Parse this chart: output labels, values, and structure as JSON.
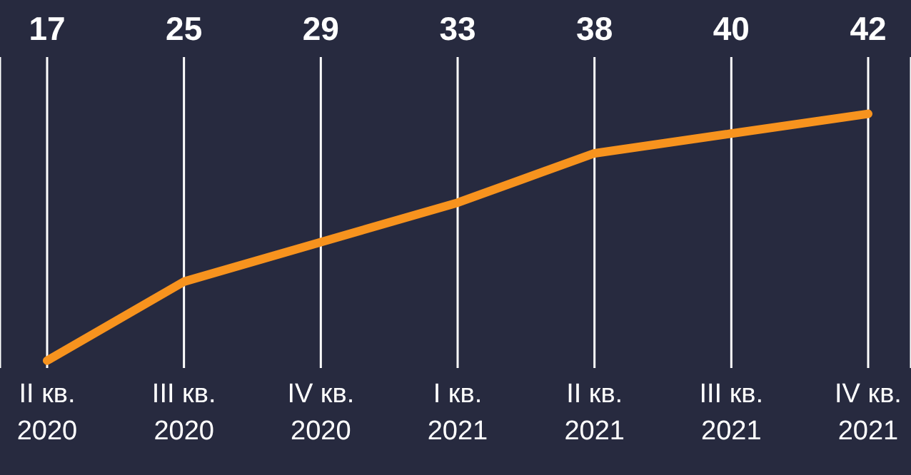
{
  "chart_data": {
    "type": "line",
    "categories": [
      "II кв. 2020",
      "III кв. 2020",
      "IV кв. 2020",
      "I кв. 2021",
      "II кв. 2021",
      "III кв. 2021",
      "IV кв. 2021"
    ],
    "series": [
      {
        "color": "#f7931e",
        "values": [
          17,
          25,
          29,
          33,
          38,
          40,
          42
        ]
      }
    ],
    "data_labels": true,
    "grid": "x",
    "marker": "none",
    "line_style": "solid",
    "legend": false
  }
}
